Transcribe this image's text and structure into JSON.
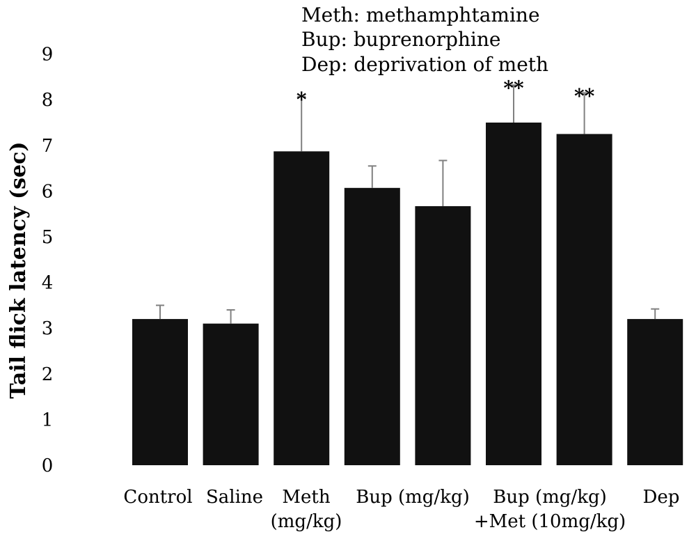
{
  "legend": [
    "Meth: methamphtamine",
    "Bup: buprenorphine",
    "Dep: deprivation of meth"
  ],
  "chart_data": {
    "type": "bar",
    "ylabel": "Tail flick latency (sec)",
    "xlabel": "",
    "ylim": [
      0,
      9
    ],
    "yticks": [
      "0",
      "1",
      "2",
      "3",
      "4",
      "5",
      "6",
      "7",
      "8",
      "9"
    ],
    "grid": false,
    "categories": [
      [
        "Control"
      ],
      [
        "Saline"
      ],
      [
        "Meth",
        "(mg/kg)"
      ],
      [
        "Bup (mg/kg)"
      ],
      [
        ""
      ],
      [
        "Bup (mg/kg)",
        "+Met (10mg/kg)"
      ],
      [
        ""
      ],
      [
        "Dep"
      ]
    ],
    "values": [
      3.2,
      3.1,
      6.87,
      6.07,
      5.67,
      7.5,
      7.25,
      3.2
    ],
    "error_upper": [
      0.3,
      0.3,
      1.2,
      0.48,
      1.0,
      0.82,
      0.9,
      0.22
    ],
    "significance": [
      "",
      "",
      "*",
      "",
      "",
      "**",
      "**",
      ""
    ],
    "bar_color": "#111111",
    "error_color": "#808080"
  }
}
